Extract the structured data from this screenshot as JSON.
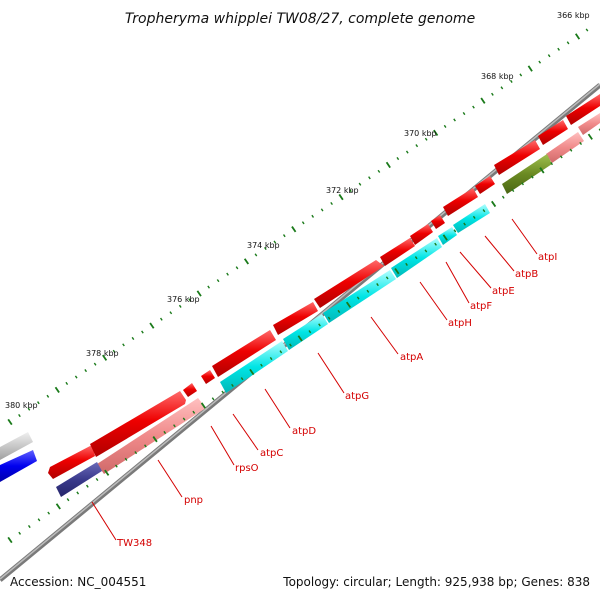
{
  "title": "Tropheryma whipplei TW08/27, complete genome",
  "footer": {
    "accession": "Accession: NC_004551",
    "summary": "Topology: circular; Length: 925,938 bp; Genes: 838"
  },
  "colors": {
    "backbone": "#7a7a7a",
    "forward_gene": "#ee0000",
    "forward_gene_light": "#f08a8a",
    "reverse_cds": "#00e5e5",
    "navy_feature": "#3a3a8c",
    "olive_feature": "#6b8a22",
    "blue_feature": "#0000ee",
    "grey_feature": "#c8c8c8",
    "tick": "#1a7a1a",
    "label_line": "#d40000"
  },
  "ticks": [
    {
      "label": "366 kbp"
    },
    {
      "label": "368 kbp"
    },
    {
      "label": "370 kbp"
    },
    {
      "label": "372 kbp"
    },
    {
      "label": "374 kbp"
    },
    {
      "label": "376 kbp"
    },
    {
      "label": "378 kbp"
    },
    {
      "label": "380 kbp"
    }
  ],
  "genes": [
    {
      "name": "atpI"
    },
    {
      "name": "atpB"
    },
    {
      "name": "atpE"
    },
    {
      "name": "atpF"
    },
    {
      "name": "atpH"
    },
    {
      "name": "atpA"
    },
    {
      "name": "atpG"
    },
    {
      "name": "atpD"
    },
    {
      "name": "atpC"
    },
    {
      "name": "rpsO"
    },
    {
      "name": "pnp"
    },
    {
      "name": "TW348"
    }
  ]
}
